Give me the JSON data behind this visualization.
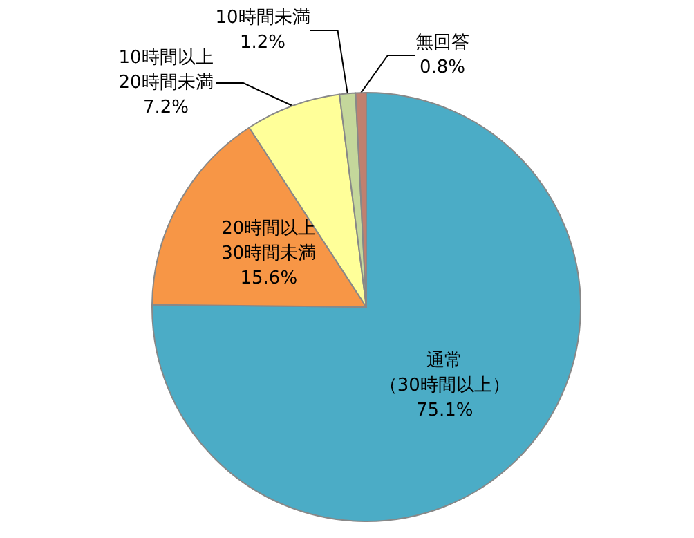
{
  "chart_data": {
    "type": "pie",
    "categories": [
      "通常（30時間以上）",
      "20時間以上30時間未満",
      "10時間以上20時間未満",
      "10時間未満",
      "無回答"
    ],
    "values": [
      75.1,
      15.6,
      7.2,
      1.2,
      0.8
    ],
    "value_labels": [
      "75.1%",
      "15.6%",
      "7.2%",
      "1.2%",
      "0.8%"
    ],
    "colors": [
      "#4bacc6",
      "#f79646",
      "#ffff99",
      "#c4d79b",
      "#c0806f"
    ]
  }
}
